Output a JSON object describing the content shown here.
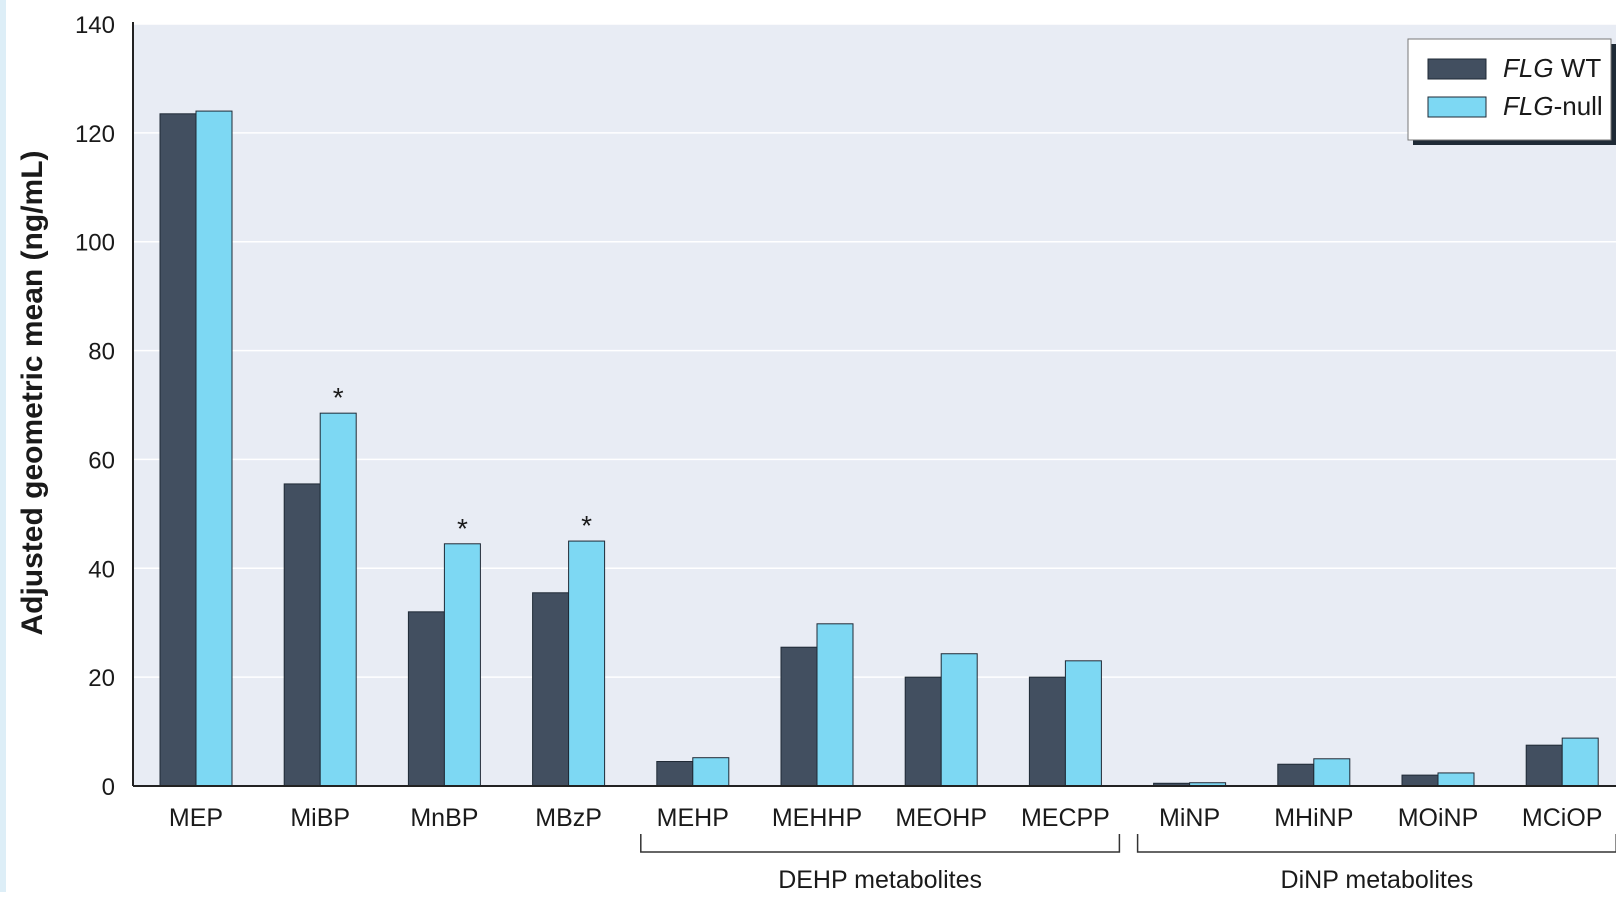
{
  "chart_data": {
    "type": "bar",
    "ylabel": "Adjusted geometric mean (ng/mL)",
    "ylim": [
      0,
      140
    ],
    "yticks": [
      "0",
      "20",
      "40",
      "60",
      "80",
      "100",
      "120",
      "140"
    ],
    "grid": true,
    "legend_position": "top-right",
    "categories": [
      "MEP",
      "MiBP",
      "MnBP",
      "MBzP",
      "MEHP",
      "MEHHP",
      "MEOHP",
      "MECPP",
      "MiNP",
      "MHiNP",
      "MOiNP",
      "MCiOP"
    ],
    "series": [
      {
        "name": "FLG WT",
        "name_italic": "FLG",
        "name_suffix": " WT",
        "color": "#424f60",
        "values": [
          123.5,
          55.5,
          32,
          35.5,
          4.5,
          25.5,
          20,
          20,
          0.5,
          4,
          2,
          7.5
        ]
      },
      {
        "name": "FLG-null",
        "name_italic": "FLG",
        "name_suffix": "-null",
        "color": "#7dd8f3",
        "values": [
          124,
          68.5,
          44.5,
          45,
          5.2,
          29.8,
          24.3,
          23,
          0.6,
          5,
          2.4,
          8.8
        ]
      }
    ],
    "annotations": [
      {
        "category": "MiBP",
        "text": "*"
      },
      {
        "category": "MnBP",
        "text": "*"
      },
      {
        "category": "MBzP",
        "text": "*"
      }
    ],
    "groups": [
      {
        "label": "DEHP metabolites",
        "from": "MEHP",
        "to": "MECPP"
      },
      {
        "label": "DiNP metabolites",
        "from": "MiNP",
        "to": "MCiOP"
      }
    ],
    "colors": {
      "plot_background": "#e8ecf4",
      "grid": "#ffffff",
      "axis": "#222222"
    }
  }
}
